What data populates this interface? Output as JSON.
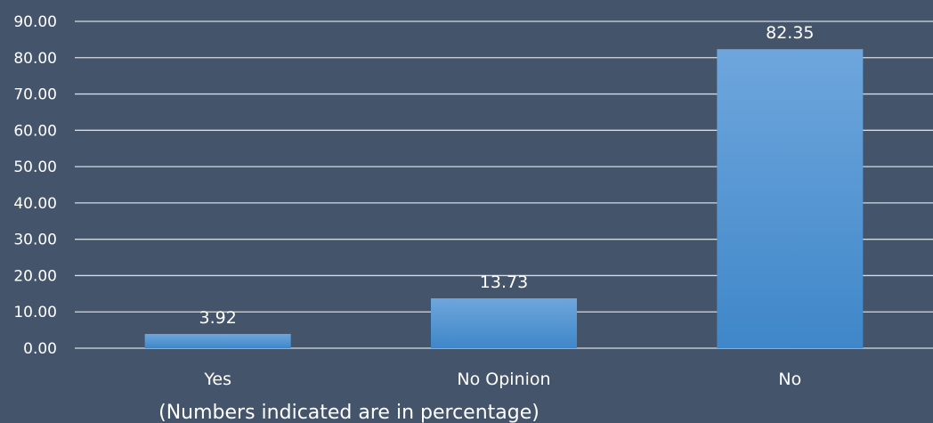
{
  "chart_data": {
    "type": "bar",
    "categories": [
      "Yes",
      "No Opinion",
      "No"
    ],
    "values": [
      3.92,
      13.73,
      82.35
    ],
    "data_labels": [
      "3.92",
      "13.73",
      "82.35"
    ],
    "y_ticks": [
      "0.00",
      "10.00",
      "20.00",
      "30.00",
      "40.00",
      "50.00",
      "60.00",
      "70.00",
      "80.00",
      "90.00"
    ],
    "ylim": [
      0,
      90
    ],
    "grid": true,
    "note": "(Numbers indicated are in percentage)",
    "colors": {
      "background": "#44546a",
      "bar_top": "#6ea6dc",
      "bar_bottom": "#3f87c9",
      "grid": "#d6dce4",
      "text": "#ffffff"
    }
  }
}
